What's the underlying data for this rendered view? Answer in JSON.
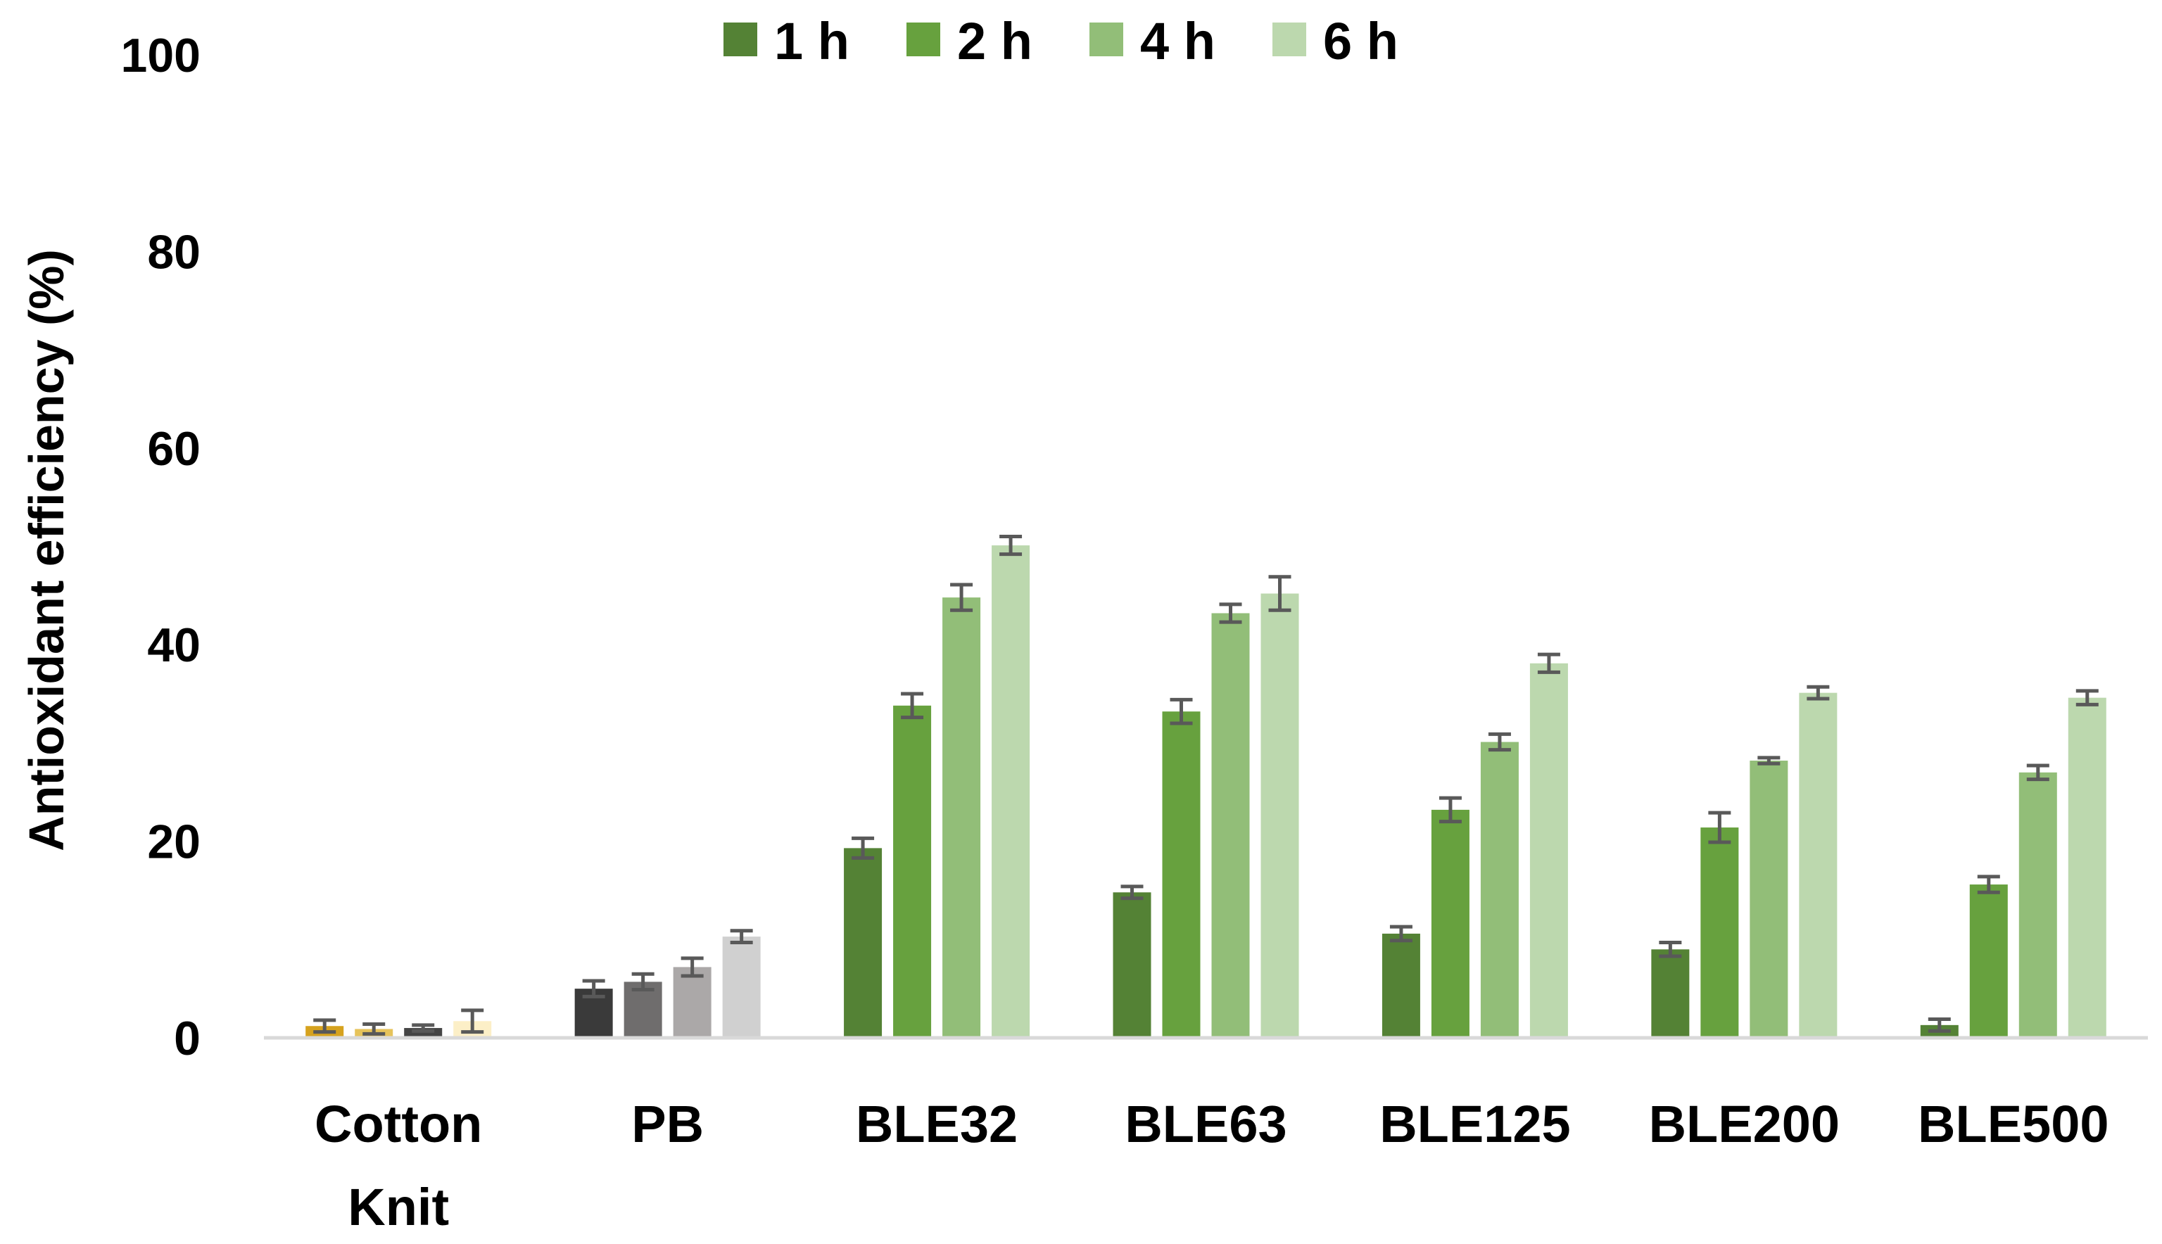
{
  "chart_data": {
    "type": "bar",
    "title": "",
    "xlabel": "",
    "ylabel": "Antioxidant efficiency (%)",
    "ylim": [
      0,
      100
    ],
    "yticks": [
      "0",
      "20",
      "40",
      "60",
      "80",
      "100"
    ],
    "grid": false,
    "legend_position": "top",
    "categories": [
      [
        "Cotton",
        "Knit"
      ],
      [
        "PB"
      ],
      [
        "BLE32"
      ],
      [
        "BLE63"
      ],
      [
        "BLE125"
      ],
      [
        "BLE200"
      ],
      [
        "BLE500"
      ]
    ],
    "series": [
      {
        "name": "1 h",
        "legend_color": "#548235",
        "values": [
          1.2,
          5.0,
          19.3,
          14.8,
          10.6,
          9.0,
          1.3
        ],
        "errors": [
          0.6,
          0.8,
          1.0,
          0.6,
          0.7,
          0.7,
          0.6
        ]
      },
      {
        "name": "2 h",
        "legend_color": "#67A13E",
        "values": [
          0.9,
          5.7,
          33.8,
          33.2,
          23.2,
          21.4,
          15.6
        ],
        "errors": [
          0.5,
          0.8,
          1.2,
          1.2,
          1.2,
          1.5,
          0.8
        ]
      },
      {
        "name": "4 h",
        "legend_color": "#92BE78",
        "values": [
          1.0,
          7.2,
          44.8,
          43.2,
          30.1,
          28.2,
          27.0
        ],
        "errors": [
          0.3,
          0.9,
          1.3,
          0.9,
          0.8,
          0.3,
          0.7
        ]
      },
      {
        "name": "6 h",
        "legend_color": "#BCD8AE",
        "values": [
          1.7,
          10.3,
          50.1,
          45.2,
          38.1,
          35.1,
          34.6
        ],
        "errors": [
          1.1,
          0.6,
          0.9,
          1.7,
          0.9,
          0.6,
          0.7
        ]
      }
    ],
    "bar_colors_by_category": [
      [
        "#D6A21E",
        "#E6C35A",
        "#454545",
        "#FCEFC7"
      ],
      [
        "#3A3A3A",
        "#6F6D6D",
        "#ABA8A8",
        "#D0D0D0"
      ],
      [
        "#548235",
        "#67A13E",
        "#92BE78",
        "#BCD8AE"
      ],
      [
        "#548235",
        "#67A13E",
        "#92BE78",
        "#BCD8AE"
      ],
      [
        "#548235",
        "#67A13E",
        "#92BE78",
        "#BCD8AE"
      ],
      [
        "#548235",
        "#67A13E",
        "#92BE78",
        "#BCD8AE"
      ],
      [
        "#548235",
        "#67A13E",
        "#92BE78",
        "#BCD8AE"
      ]
    ],
    "colors": {
      "axis": "#D9D9D9",
      "error_bar": "#595959"
    }
  }
}
